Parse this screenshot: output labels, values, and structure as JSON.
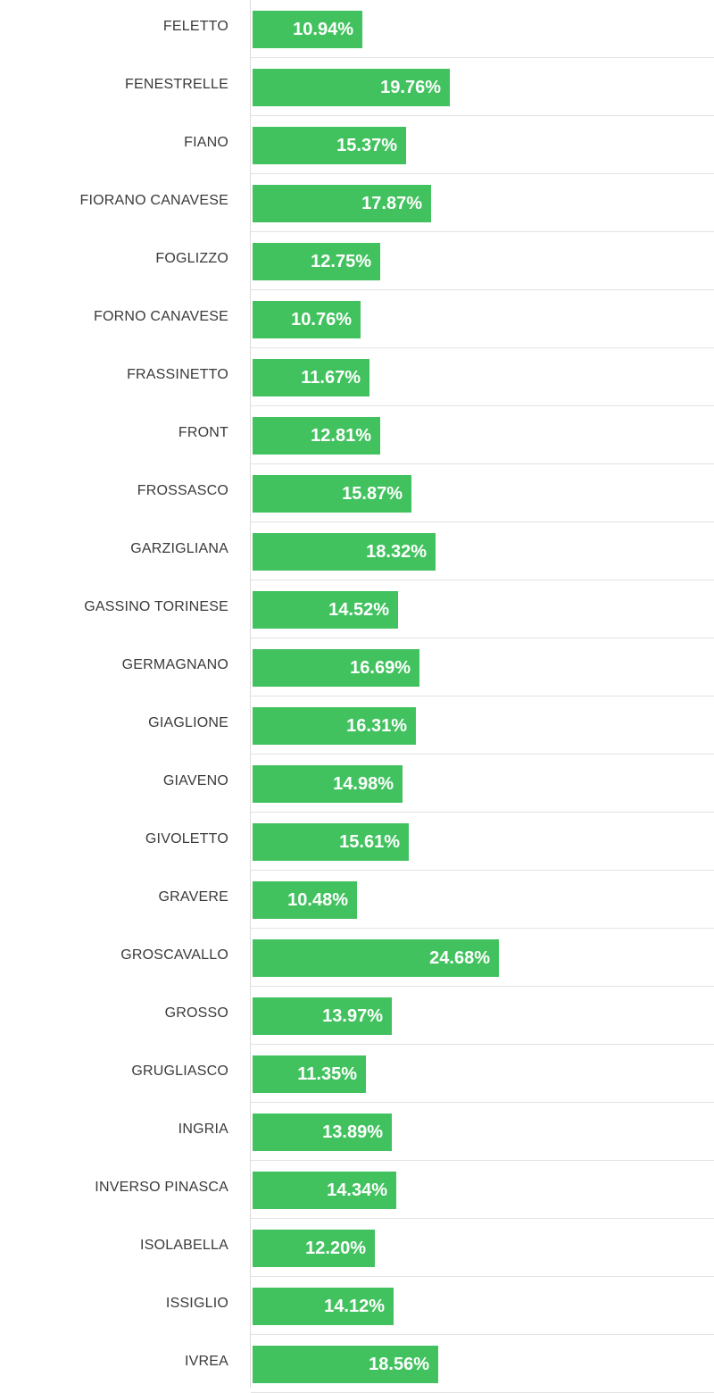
{
  "colors": {
    "bar": "#42c25f",
    "bar_text": "#ffffff",
    "label_text": "#3a3a3a",
    "grid": "#e3e3e3"
  },
  "chart_data": {
    "type": "bar",
    "orientation": "horizontal",
    "categories": [
      "FELETTO",
      "FENESTRELLE",
      "FIANO",
      "FIORANO CANAVESE",
      "FOGLIZZO",
      "FORNO CANAVESE",
      "FRASSINETTO",
      "FRONT",
      "FROSSASCO",
      "GARZIGLIANA",
      "GASSINO TORINESE",
      "GERMAGNANO",
      "GIAGLIONE",
      "GIAVENO",
      "GIVOLETTO",
      "GRAVERE",
      "GROSCAVALLO",
      "GROSSO",
      "GRUGLIASCO",
      "INGRIA",
      "INVERSO PINASCA",
      "ISOLABELLA",
      "ISSIGLIO",
      "IVREA"
    ],
    "values": [
      10.94,
      19.76,
      15.37,
      17.87,
      12.75,
      10.76,
      11.67,
      12.81,
      15.87,
      18.32,
      14.52,
      16.69,
      16.31,
      14.98,
      15.61,
      10.48,
      24.68,
      13.97,
      11.35,
      13.89,
      14.34,
      12.2,
      14.12,
      18.56
    ],
    "value_labels": [
      "10.94%",
      "19.76%",
      "15.37%",
      "17.87%",
      "12.75%",
      "10.76%",
      "11.67%",
      "12.81%",
      "15.87%",
      "18.32%",
      "14.52%",
      "16.69%",
      "16.31%",
      "14.98%",
      "15.61%",
      "10.48%",
      "24.68%",
      "13.97%",
      "11.35%",
      "13.89%",
      "14.34%",
      "12.20%",
      "14.12%",
      "18.56%"
    ],
    "unit": "%",
    "title": "",
    "xlabel": "",
    "ylabel": "",
    "grid": true,
    "legend": false
  }
}
